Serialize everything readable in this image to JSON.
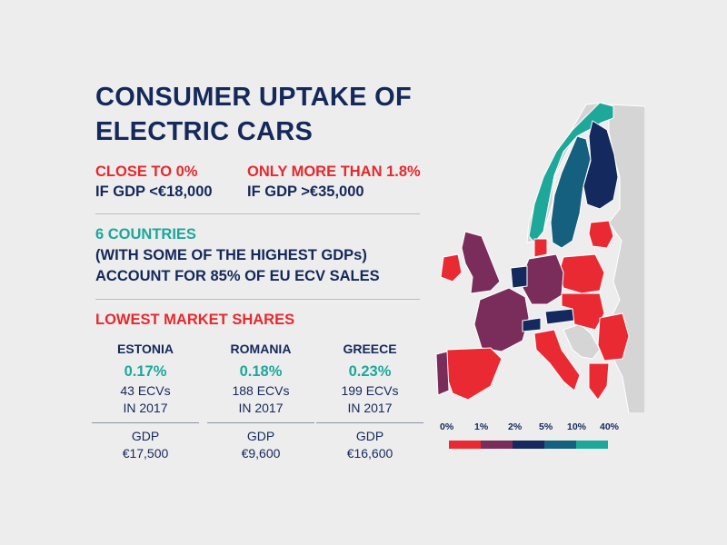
{
  "title": {
    "line1": "CONSUMER UPTAKE OF",
    "line2": "ELECTRIC CARS"
  },
  "stats": [
    {
      "headline": "CLOSE TO 0%",
      "sub": "IF GDP <€18,000"
    },
    {
      "headline": "ONLY MORE THAN 1.8%",
      "sub": "IF GDP >€35,000"
    }
  ],
  "highlight": {
    "line1": "6 COUNTRIES",
    "line2": "(WITH SOME OF THE HIGHEST GDPs)",
    "line3": "ACCOUNT FOR 85% OF EU ECV SALES"
  },
  "lowest_heading": "LOWEST MARKET SHARES",
  "countries": [
    {
      "name": "ESTONIA",
      "share": "0.17%",
      "ecvs": "43 ECVs",
      "year": "IN 2017",
      "gdp_label": "GDP",
      "gdp": "€17,500"
    },
    {
      "name": "ROMANIA",
      "share": "0.18%",
      "ecvs": "188 ECVs",
      "year": "IN 2017",
      "gdp_label": "GDP",
      "gdp": "€9,600"
    },
    {
      "name": "GREECE",
      "share": "0.23%",
      "ecvs": "199 ECVs",
      "year": "IN 2017",
      "gdp_label": "GDP",
      "gdp": "€16,600"
    }
  ],
  "legend": {
    "labels": [
      "0%",
      "1%",
      "2%",
      "5%",
      "10%",
      "40%"
    ],
    "colors": [
      "#ea2a33",
      "#7a2c5a",
      "#14295e",
      "#15607f",
      "#1da89a"
    ]
  },
  "colors": {
    "navy": "#14285a",
    "red": "#e8282d",
    "teal": "#1ba89c",
    "non_eu": "#d5d5d5",
    "sea": "#ededed"
  }
}
